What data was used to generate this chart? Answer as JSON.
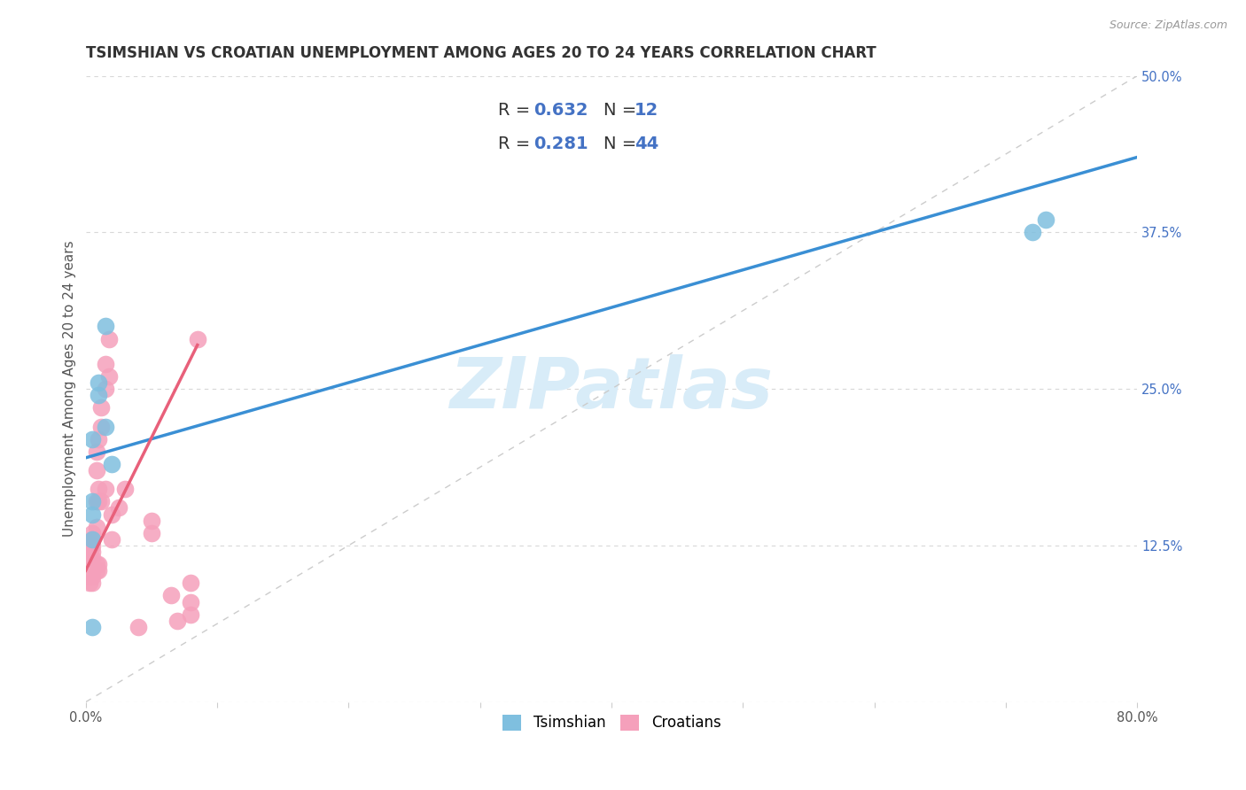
{
  "title": "TSIMSHIAN VS CROATIAN UNEMPLOYMENT AMONG AGES 20 TO 24 YEARS CORRELATION CHART",
  "source": "Source: ZipAtlas.com",
  "ylabel": "Unemployment Among Ages 20 to 24 years",
  "xlim": [
    0.0,
    0.8
  ],
  "ylim": [
    0.0,
    0.5
  ],
  "xticks": [
    0.0,
    0.1,
    0.2,
    0.3,
    0.4,
    0.5,
    0.6,
    0.7,
    0.8
  ],
  "xticklabels": [
    "0.0%",
    "",
    "",
    "",
    "",
    "",
    "",
    "",
    "80.0%"
  ],
  "ytick_positions": [
    0.0,
    0.125,
    0.25,
    0.375,
    0.5
  ],
  "right_ytick_labels": [
    "",
    "12.5%",
    "25.0%",
    "37.5%",
    "50.0%"
  ],
  "tsimshian_color": "#7fbfdf",
  "croatian_color": "#f5a0bb",
  "tsimshian_line_color": "#3a8fd4",
  "croatian_line_color": "#e8607a",
  "diagonal_color": "#cccccc",
  "watermark_color": "#d8ecf8",
  "tsimshian_x": [
    0.005,
    0.005,
    0.005,
    0.005,
    0.005,
    0.01,
    0.01,
    0.015,
    0.015,
    0.02,
    0.72,
    0.73
  ],
  "tsimshian_y": [
    0.13,
    0.15,
    0.16,
    0.21,
    0.06,
    0.245,
    0.255,
    0.3,
    0.22,
    0.19,
    0.375,
    0.385
  ],
  "croatian_x": [
    0.003,
    0.003,
    0.003,
    0.003,
    0.003,
    0.005,
    0.005,
    0.005,
    0.005,
    0.005,
    0.005,
    0.005,
    0.008,
    0.008,
    0.008,
    0.008,
    0.008,
    0.008,
    0.01,
    0.01,
    0.01,
    0.01,
    0.01,
    0.012,
    0.012,
    0.012,
    0.015,
    0.015,
    0.015,
    0.018,
    0.018,
    0.02,
    0.02,
    0.025,
    0.03,
    0.05,
    0.05,
    0.065,
    0.08,
    0.08,
    0.085,
    0.08,
    0.07,
    0.04
  ],
  "croatian_y": [
    0.115,
    0.12,
    0.125,
    0.1,
    0.095,
    0.115,
    0.12,
    0.125,
    0.13,
    0.135,
    0.1,
    0.095,
    0.14,
    0.16,
    0.185,
    0.2,
    0.11,
    0.105,
    0.16,
    0.17,
    0.21,
    0.105,
    0.11,
    0.235,
    0.22,
    0.16,
    0.27,
    0.25,
    0.17,
    0.29,
    0.26,
    0.15,
    0.13,
    0.155,
    0.17,
    0.135,
    0.145,
    0.085,
    0.08,
    0.07,
    0.29,
    0.095,
    0.065,
    0.06
  ],
  "tsimshian_line_x": [
    0.0,
    0.8
  ],
  "tsimshian_line_y": [
    0.195,
    0.435
  ],
  "croatian_line_x": [
    0.0,
    0.085
  ],
  "croatian_line_y": [
    0.105,
    0.285
  ],
  "background_color": "#ffffff",
  "grid_color": "#d8d8d8",
  "title_fontsize": 12,
  "axis_label_fontsize": 11,
  "tick_fontsize": 10.5,
  "legend_r_color": "#4472c4",
  "legend_n_color": "#4472c4"
}
